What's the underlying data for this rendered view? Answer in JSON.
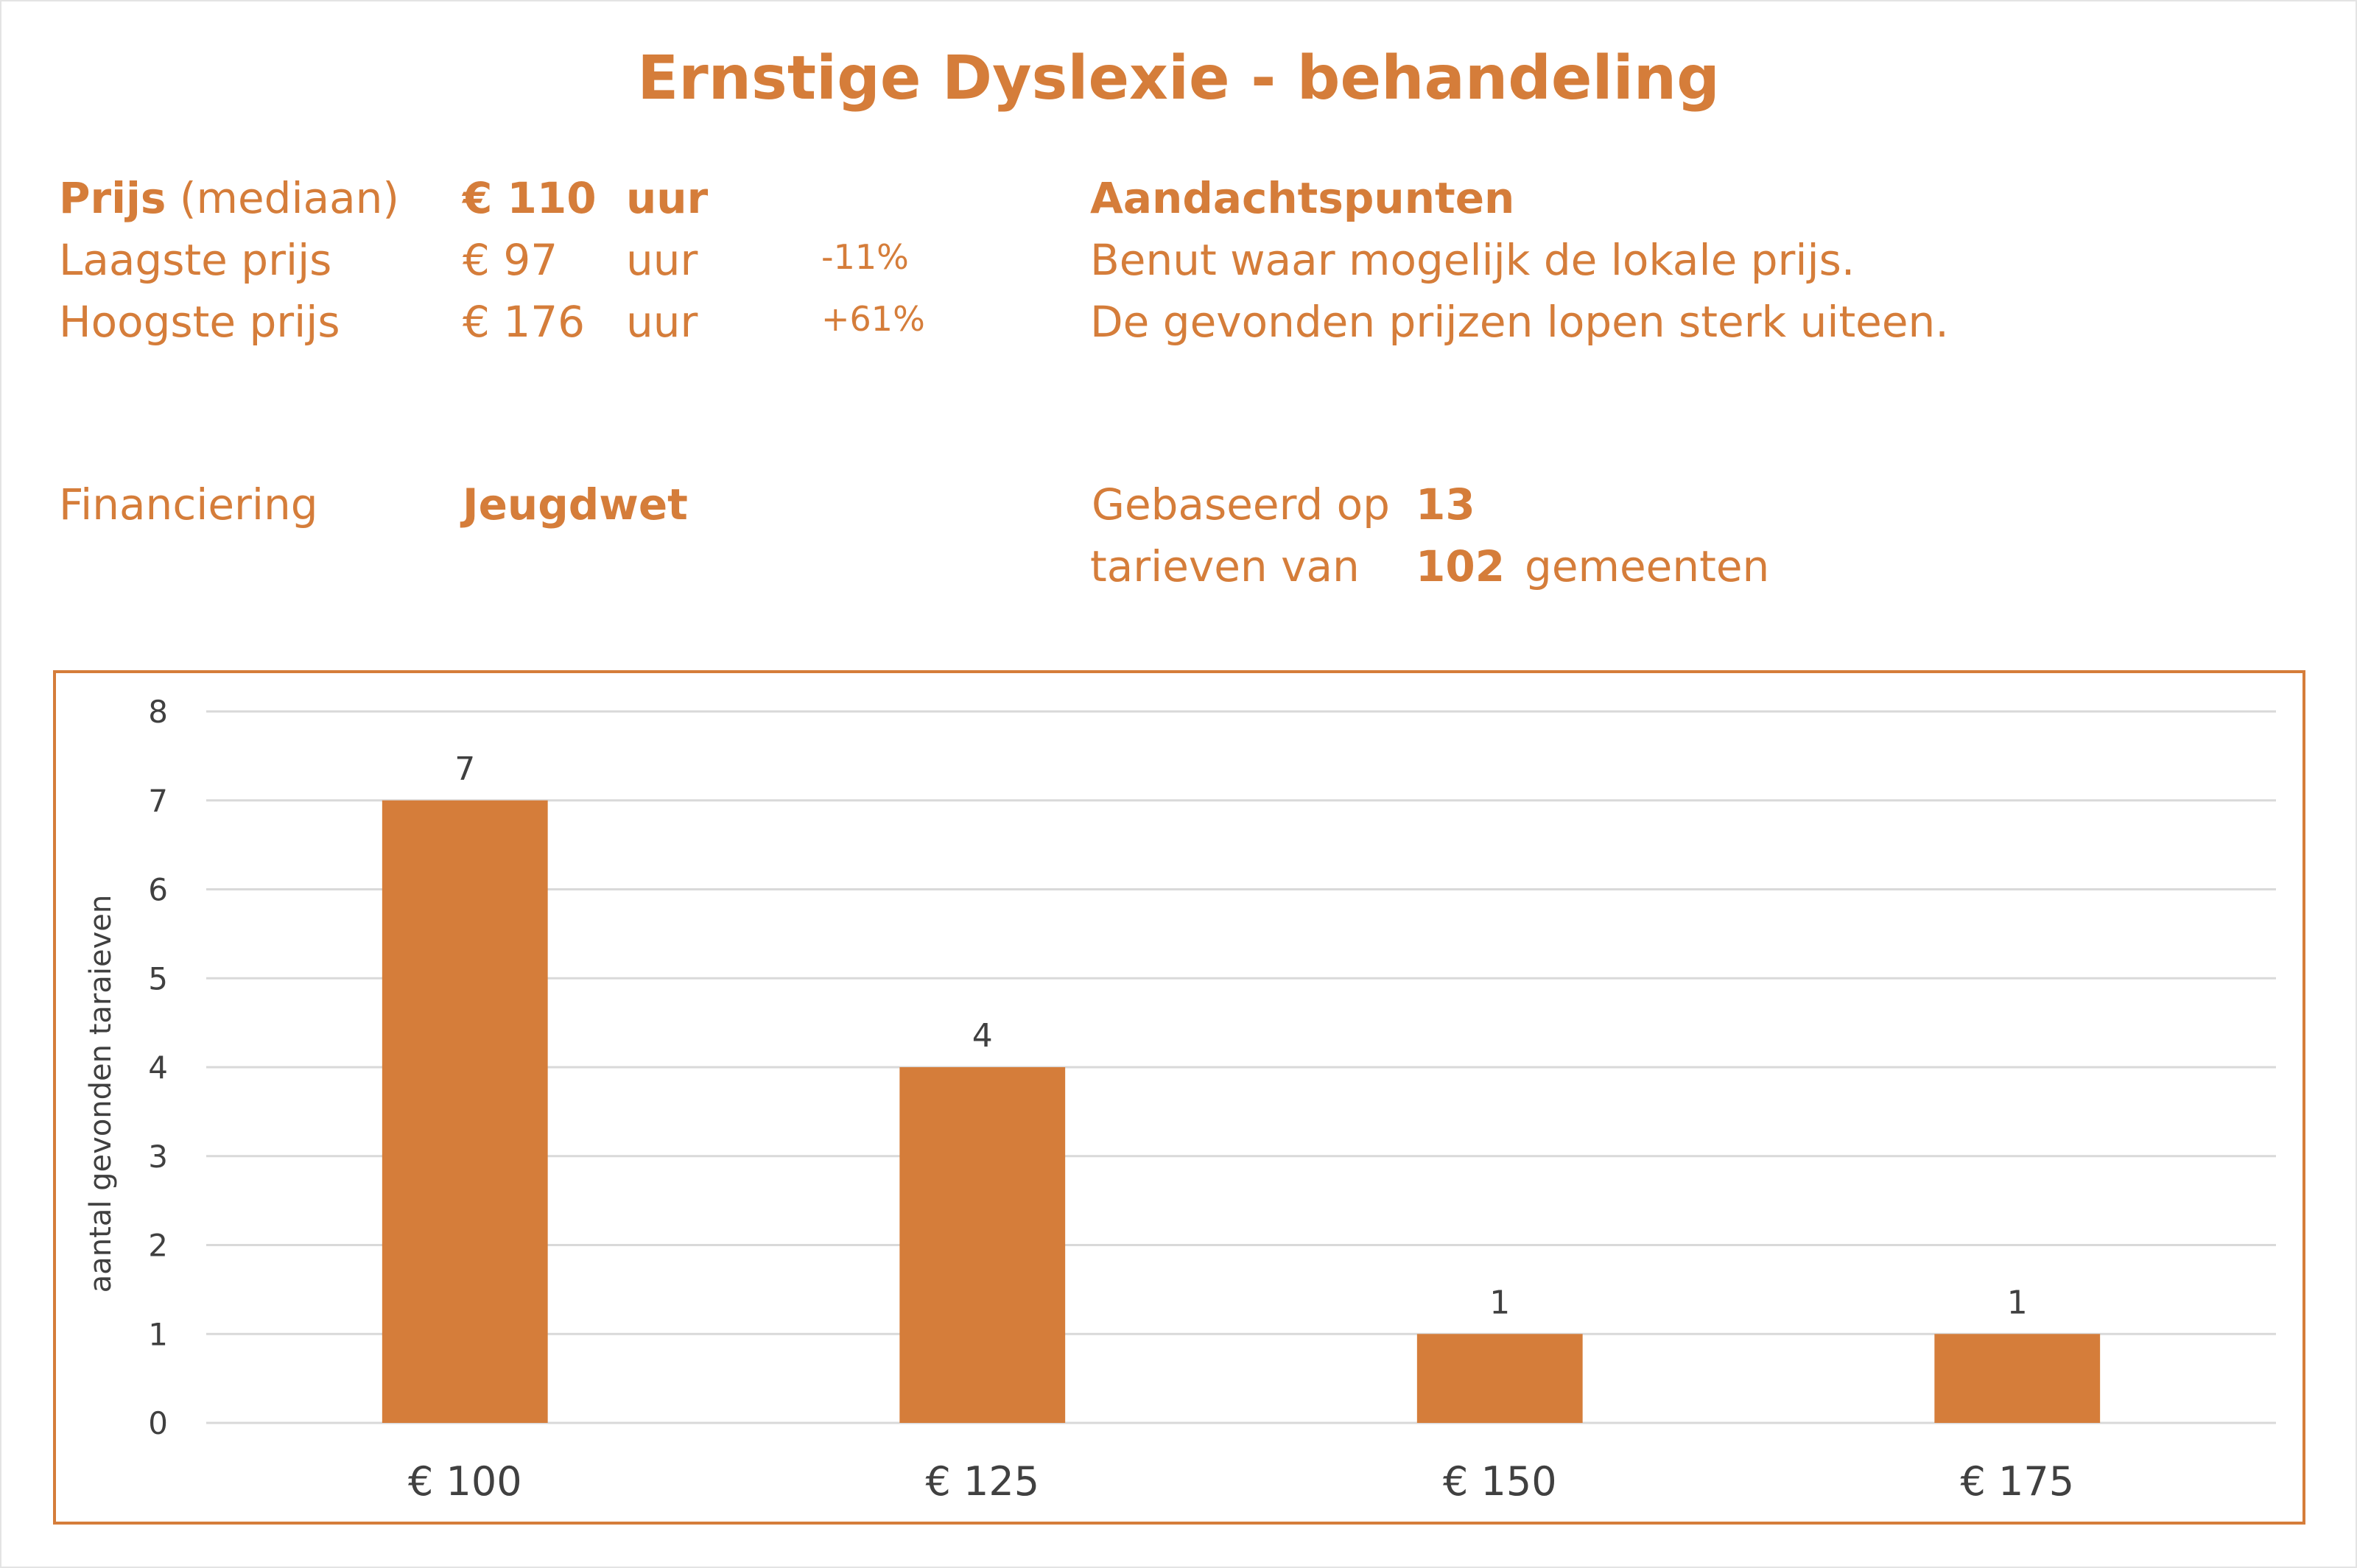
{
  "title": "Ernstige Dyslexie - behandeling",
  "price": {
    "median_label": "Prijs",
    "median_suffix": "(mediaan)",
    "median_value": "€ 110",
    "median_unit": "uur",
    "low_label": "Laagste prijs",
    "low_value": "€ 97",
    "low_unit": "uur",
    "low_pct": "-11%",
    "high_label": "Hoogste prijs",
    "high_value": "€ 176",
    "high_unit": "uur",
    "high_pct": "+61%"
  },
  "attention": {
    "heading": "Aandachtspunten",
    "line1": "Benut waar mogelijk de lokale prijs.",
    "line2": "De gevonden prijzen lopen sterk uiteen."
  },
  "financing": {
    "label": "Financiering",
    "value": "Jeugdwet"
  },
  "basis": {
    "label1": "Gebaseerd op",
    "count1": "13",
    "label2": "tarieven van",
    "count2": "102",
    "label3": "gemeenten"
  },
  "colors": {
    "accent": "#d57d3a",
    "bar": "#d57d3a",
    "grid": "#d9d9d9",
    "axis_text": "#404040"
  },
  "chart_data": {
    "type": "bar",
    "categories": [
      "€ 100",
      "€ 125",
      "€ 150",
      "€ 175"
    ],
    "values": [
      7,
      4,
      1,
      1
    ],
    "ylabel": "aantal gevonden taraieven",
    "ylim": [
      0,
      8
    ],
    "yticks": [
      0,
      1,
      2,
      3,
      4,
      5,
      6,
      7,
      8
    ],
    "grid": true,
    "data_labels": true,
    "legend": "none"
  }
}
